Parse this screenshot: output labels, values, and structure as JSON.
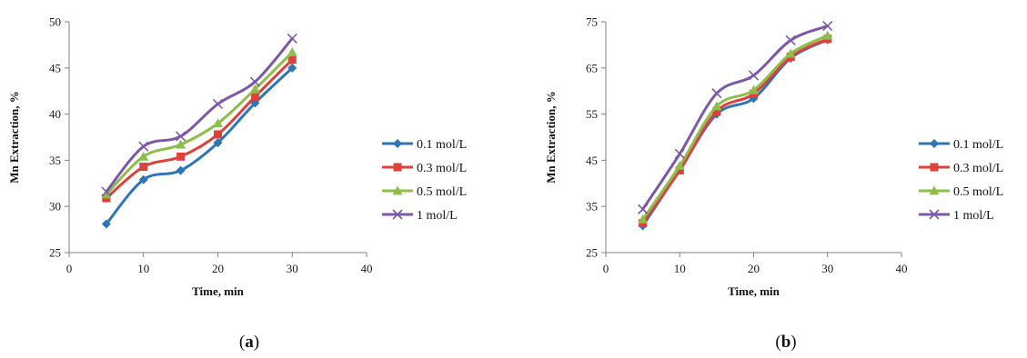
{
  "chart_data": [
    {
      "type": "line",
      "panel_label": {
        "open": "(",
        "letter": "a",
        "close": ")"
      },
      "xlabel": "Time, min",
      "ylabel": "Mn Extraction, %",
      "xlim": [
        0,
        40
      ],
      "ylim": [
        25,
        50
      ],
      "xticks": [
        0,
        10,
        20,
        30,
        40
      ],
      "yticks": [
        25,
        30,
        35,
        40,
        45,
        50
      ],
      "grid": false,
      "legend_position": "right",
      "x": [
        5,
        10,
        15,
        20,
        25,
        30
      ],
      "series": [
        {
          "name": "0.1 mol/L",
          "color": "#2E75B6",
          "marker": "diamond",
          "values": [
            28.1,
            32.9,
            33.9,
            36.9,
            41.2,
            45.0
          ]
        },
        {
          "name": "0.3 mol/L",
          "color": "#E0403C",
          "marker": "square",
          "values": [
            30.9,
            34.3,
            35.4,
            37.8,
            41.9,
            45.9
          ]
        },
        {
          "name": "0.5 mol/L",
          "color": "#8DBE4A",
          "marker": "triangle",
          "values": [
            31.3,
            35.4,
            36.7,
            39.0,
            42.7,
            46.7
          ]
        },
        {
          "name": "1 mol/L",
          "color": "#7C58A8",
          "marker": "x",
          "values": [
            31.6,
            36.5,
            37.6,
            41.1,
            43.5,
            48.2
          ]
        }
      ]
    },
    {
      "type": "line",
      "panel_label": {
        "open": "(",
        "letter": "b",
        "close": ")"
      },
      "xlabel": "Time, min",
      "ylabel": "Mn Extraction, %",
      "xlim": [
        0,
        40
      ],
      "ylim": [
        25,
        75
      ],
      "xticks": [
        0,
        10,
        20,
        30,
        40
      ],
      "yticks": [
        25,
        35,
        45,
        55,
        65,
        75
      ],
      "grid": false,
      "legend_position": "right",
      "x": [
        5,
        10,
        15,
        20,
        25,
        30
      ],
      "series": [
        {
          "name": "0.1 mol/L",
          "color": "#2E75B6",
          "marker": "diamond",
          "values": [
            30.8,
            42.9,
            55.0,
            58.4,
            67.1,
            71.1
          ]
        },
        {
          "name": "0.3 mol/L",
          "color": "#E0403C",
          "marker": "square",
          "values": [
            31.4,
            42.8,
            55.6,
            59.4,
            67.4,
            71.3
          ]
        },
        {
          "name": "0.5 mol/L",
          "color": "#8DBE4A",
          "marker": "triangle",
          "values": [
            32.2,
            43.8,
            56.7,
            60.2,
            68.1,
            72.0
          ]
        },
        {
          "name": "1 mol/L",
          "color": "#7C58A8",
          "marker": "x",
          "values": [
            34.4,
            46.4,
            59.5,
            63.4,
            71.0,
            74.1
          ]
        }
      ]
    }
  ]
}
